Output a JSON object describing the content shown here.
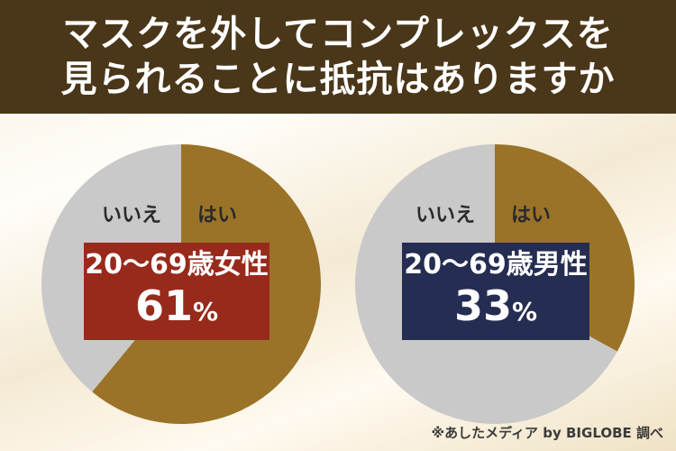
{
  "header": {
    "line1": "マスクを外してコンプレックスを",
    "line2": "見られることに抵抗はありますか"
  },
  "chart_data": [
    {
      "type": "pie",
      "title": "20〜69歳女性",
      "categories": [
        "はい",
        "いいえ"
      ],
      "values": [
        61,
        39
      ],
      "highlight": "61",
      "unit": "%",
      "colors": {
        "yes": "#9a7328",
        "no": "#c9c9c9",
        "box": "#982a1c"
      }
    },
    {
      "type": "pie",
      "title": "20〜69歳男性",
      "categories": [
        "はい",
        "いいえ"
      ],
      "values": [
        33,
        67
      ],
      "highlight": "33",
      "unit": "%",
      "colors": {
        "yes": "#9a7328",
        "no": "#c9c9c9",
        "box": "#262d52"
      }
    }
  ],
  "source": "※あしたメディア by BIGLOBE 調べ"
}
